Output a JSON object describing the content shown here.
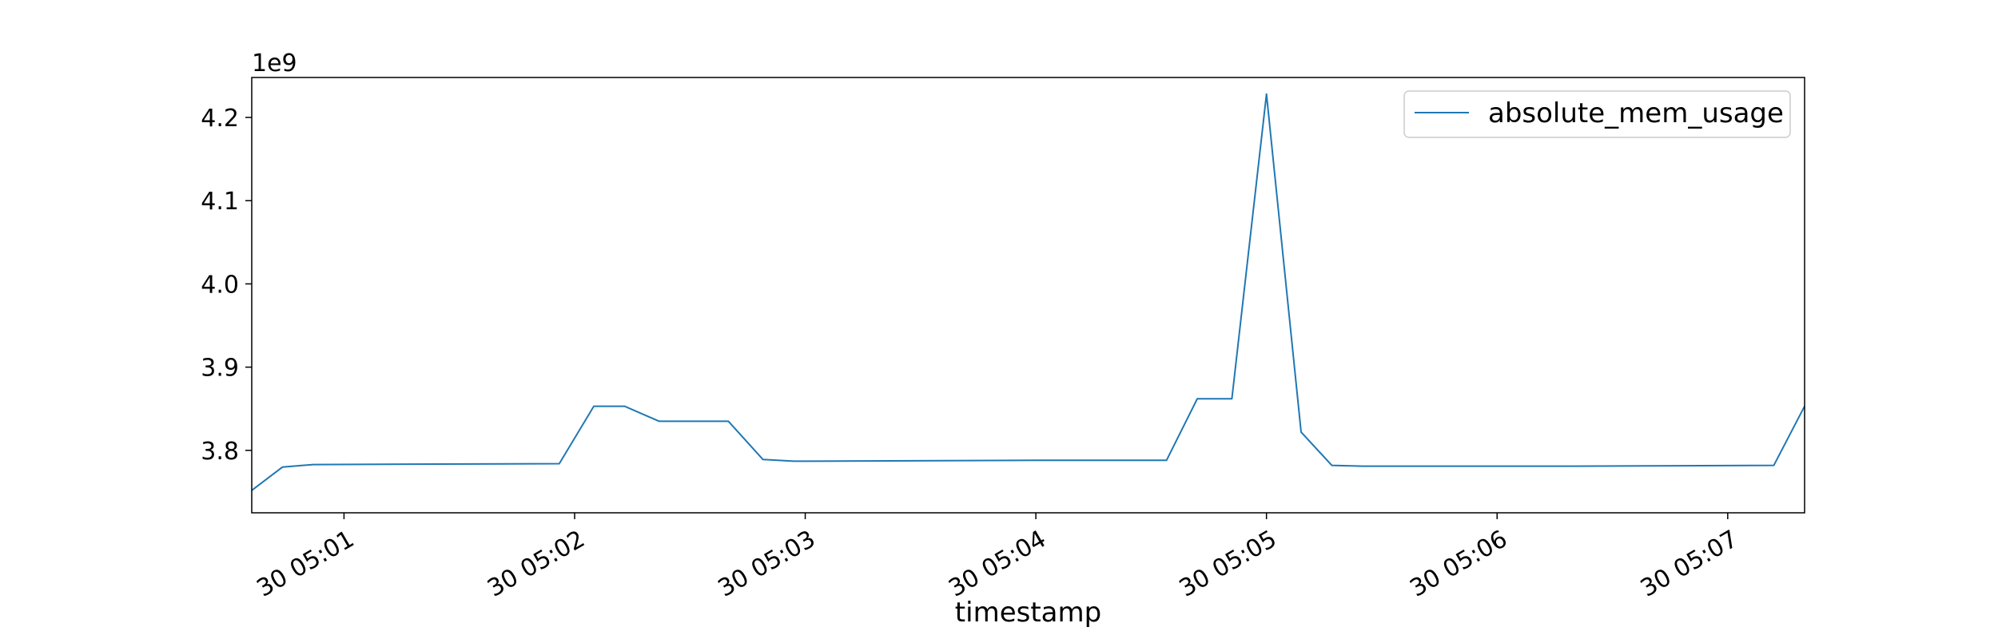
{
  "chart_data": {
    "type": "line",
    "title": "",
    "xlabel": "timestamp",
    "ylabel": "",
    "y_offset_label": "1e9",
    "y_multiplier": 1000000000,
    "legend_position": "upper right",
    "grid": false,
    "colors": {
      "series": "#1f77b4",
      "axes": "#000000",
      "legend_border": "#cccccc"
    },
    "xlim": [
      "2030-01-30 05:00:36",
      "2030-01-30 05:07:20"
    ],
    "ylim": [
      3.725,
      4.248
    ],
    "x_ticks": [
      {
        "time": "2030-01-30 05:01:00",
        "label": "30 05:01"
      },
      {
        "time": "2030-01-30 05:02:00",
        "label": "30 05:02"
      },
      {
        "time": "2030-01-30 05:03:00",
        "label": "30 05:03"
      },
      {
        "time": "2030-01-30 05:04:00",
        "label": "30 05:04"
      },
      {
        "time": "2030-01-30 05:05:00",
        "label": "30 05:05"
      },
      {
        "time": "2030-01-30 05:06:00",
        "label": "30 05:06"
      },
      {
        "time": "2030-01-30 05:07:00",
        "label": "30 05:07"
      }
    ],
    "y_ticks": [
      {
        "value": 3.8,
        "label": "3.8"
      },
      {
        "value": 3.9,
        "label": "3.9"
      },
      {
        "value": 4.0,
        "label": "4.0"
      },
      {
        "value": 4.1,
        "label": "4.1"
      },
      {
        "value": 4.2,
        "label": "4.2"
      }
    ],
    "series": [
      {
        "name": "absolute_mem_usage",
        "x": [
          "2030-01-30 05:00:36",
          "2030-01-30 05:00:44",
          "2030-01-30 05:00:52",
          "2030-01-30 05:01:56",
          "2030-01-30 05:02:05",
          "2030-01-30 05:02:13",
          "2030-01-30 05:02:22",
          "2030-01-30 05:02:40",
          "2030-01-30 05:02:49",
          "2030-01-30 05:02:57",
          "2030-01-30 05:04:00",
          "2030-01-30 05:04:34",
          "2030-01-30 05:04:42",
          "2030-01-30 05:04:51",
          "2030-01-30 05:05:00",
          "2030-01-30 05:05:09",
          "2030-01-30 05:05:17",
          "2030-01-30 05:05:25",
          "2030-01-30 05:06:00",
          "2030-01-30 05:06:20",
          "2030-01-30 05:07:12",
          "2030-01-30 05:07:20"
        ],
        "y": [
          3.752,
          3.78,
          3.783,
          3.784,
          3.853,
          3.853,
          3.835,
          3.835,
          3.789,
          3.787,
          3.788,
          3.788,
          3.862,
          3.862,
          4.228,
          3.822,
          3.782,
          3.781,
          3.781,
          3.781,
          3.782,
          3.853
        ]
      }
    ]
  }
}
